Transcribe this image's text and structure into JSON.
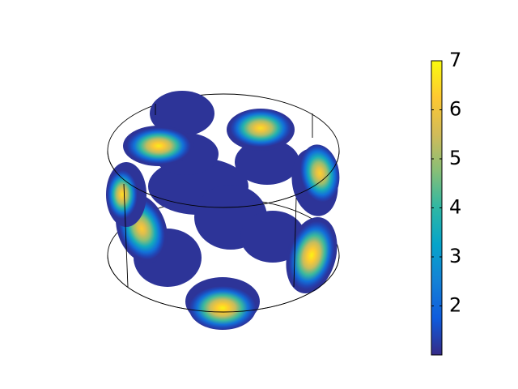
{
  "chart_data": {
    "type": "heatmap",
    "plot_kind": "3D volume slice rendering in a cylindrical domain",
    "title": "",
    "colorbar": {
      "min": 1,
      "max": 7,
      "ticks": [
        2,
        3,
        4,
        5,
        6,
        7
      ],
      "tick_labels": [
        "2",
        "3",
        "4",
        "5",
        "6",
        "7"
      ],
      "colormap": "parula",
      "placement": "right"
    },
    "colormap_stops": [
      "#352a87",
      "#0f5cdd",
      "#1481d6",
      "#06a4ca",
      "#2eb7a4",
      "#87bf77",
      "#d1bb59",
      "#fec832",
      "#f9fb0e"
    ],
    "blob_peaks": [
      6.8,
      6.6,
      6.4,
      6.3,
      6.9,
      6.9,
      6.6,
      1.2,
      1.2,
      1.2,
      1.2,
      1.3,
      1.2,
      1.2
    ],
    "grid": false,
    "legend": "none",
    "box_color": "#000000"
  }
}
